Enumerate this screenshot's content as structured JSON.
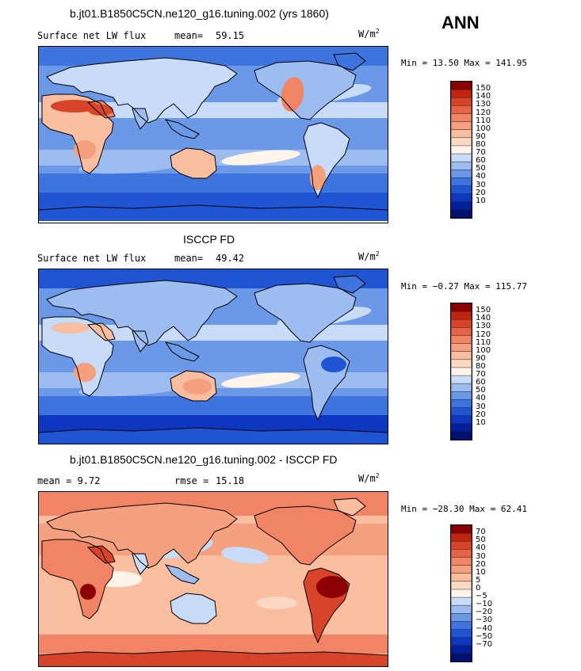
{
  "season": "ANN",
  "panels": [
    {
      "title": "b.jt01.B1850C5CN.ne120_g16.tuning.002 (yrs 1860)",
      "left_label": "Surface net LW flux",
      "stat_label": "mean=",
      "stat_value": "59.15",
      "units_base": "W/m",
      "units_exp": "2",
      "minmax": "Min =  13.50 Max = 141.95",
      "colorbar": {
        "labels": [
          "150",
          "140",
          "130",
          "120",
          "110",
          "100",
          "90",
          "80",
          "70",
          "60",
          "50",
          "40",
          "30",
          "20",
          "10"
        ],
        "colors": [
          "#8b0000",
          "#c1230f",
          "#d8442a",
          "#e56347",
          "#f08465",
          "#f5a07f",
          "#f9bda0",
          "#fbd8c4",
          "#fff4ea",
          "#c8dcf7",
          "#9dbcf0",
          "#6b98e7",
          "#3d74de",
          "#1f55d2",
          "#0d36c1",
          "#001f99",
          "#00106e"
        ]
      },
      "map_style": "model"
    },
    {
      "title": "ISCCP FD",
      "left_label": "Surface net LW flux",
      "stat_label": "mean=",
      "stat_value": "49.42",
      "units_base": "W/m",
      "units_exp": "2",
      "minmax": "Min = −0.27 Max = 115.77",
      "colorbar": {
        "labels": [
          "150",
          "140",
          "130",
          "120",
          "110",
          "100",
          "90",
          "80",
          "70",
          "60",
          "50",
          "40",
          "30",
          "20",
          "10"
        ],
        "colors": [
          "#8b0000",
          "#c1230f",
          "#d8442a",
          "#e56347",
          "#f08465",
          "#f5a07f",
          "#f9bda0",
          "#fbd8c4",
          "#fff4ea",
          "#c8dcf7",
          "#9dbcf0",
          "#6b98e7",
          "#3d74de",
          "#1f55d2",
          "#0d36c1",
          "#001f99",
          "#00106e"
        ]
      },
      "map_style": "obs"
    },
    {
      "title": "b.jt01.B1850C5CN.ne120_g16.tuning.002 - ISCCP FD",
      "left_label": "mean =   9.72",
      "stat_label": "rmse =",
      "stat_value": "15.18",
      "units_base": "W/m",
      "units_exp": "2",
      "minmax": "Min = −28.30 Max =  62.41",
      "colorbar": {
        "labels": [
          "70",
          "50",
          "40",
          "30",
          "20",
          "10",
          "5",
          "0",
          "−5",
          "−10",
          "−20",
          "−30",
          "−40",
          "−50",
          "−70"
        ],
        "colors": [
          "#8b0000",
          "#c1230f",
          "#d8442a",
          "#e56347",
          "#f08465",
          "#f5a07f",
          "#f9bda0",
          "#fbd8c4",
          "#fff4ea",
          "#c8dcf7",
          "#9dbcf0",
          "#6b98e7",
          "#3d74de",
          "#1f55d2",
          "#0d36c1",
          "#001f99",
          "#00106e"
        ]
      },
      "map_style": "diff"
    }
  ]
}
